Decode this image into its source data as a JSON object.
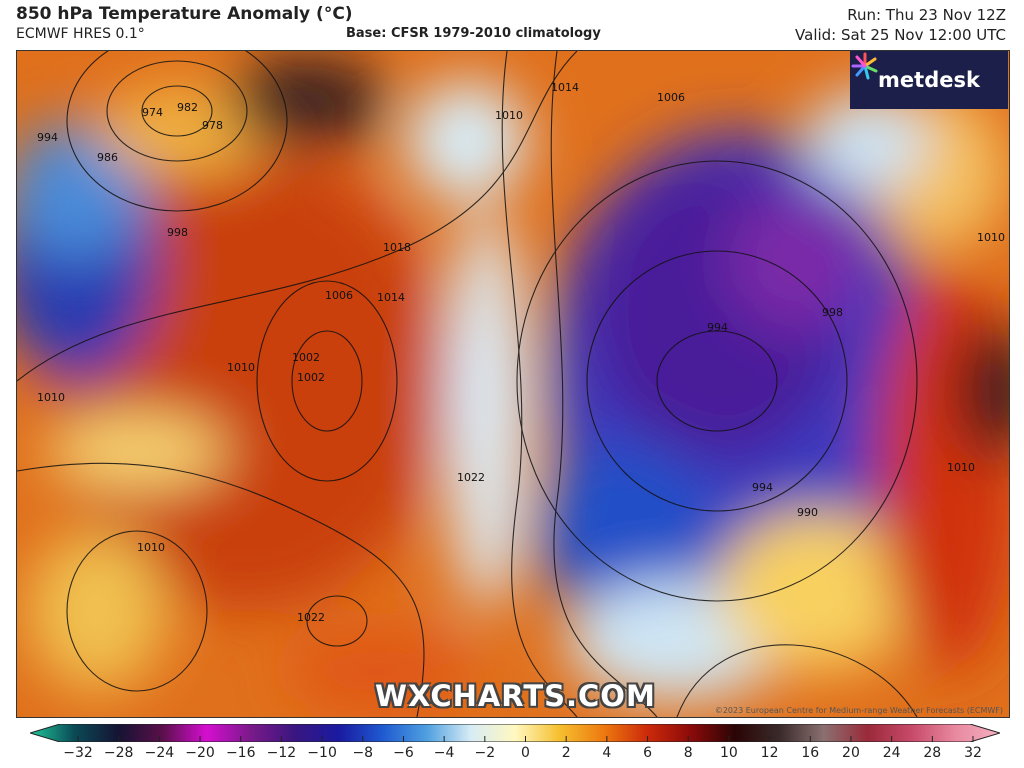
{
  "header": {
    "title": "850 hPa Temperature Anomaly (°C)",
    "model": "ECMWF HRES 0.1°",
    "base": "Base: CFSR 1979-2010 climatology",
    "run": "Run: Thu 23 Nov 12Z",
    "valid": "Valid: Sat 25 Nov 12:00 UTC"
  },
  "logo": {
    "text": "metdesk",
    "icon": "metdesk-flower-icon"
  },
  "watermark": "WXCHARTS.COM",
  "copyright": "©2023 European Centre for Medium-range Weather Forecasts (ECMWF)",
  "isobar_labels": [
    "982",
    "974",
    "978",
    "986",
    "994",
    "1002",
    "998",
    "1006",
    "1010",
    "1014",
    "1018",
    "1010",
    "1014",
    "1006",
    "1002",
    "1010",
    "1010",
    "1022",
    "1022",
    "994",
    "994",
    "998",
    "990",
    "1010",
    "1010"
  ],
  "colorbar": {
    "labels": [
      "−32",
      "−28",
      "−24",
      "−20",
      "−16",
      "−12",
      "−10",
      "−8",
      "−6",
      "−4",
      "−2",
      "0",
      "2",
      "4",
      "6",
      "8",
      "10",
      "12",
      "16",
      "20",
      "24",
      "28",
      "32"
    ],
    "colors": [
      "#1fc79a",
      "#0b4a56",
      "#141433",
      "#5a0f4a",
      "#d40fd0",
      "#7a1a8a",
      "#3a1680",
      "#1a1aa0",
      "#1f5ad0",
      "#4fa0e0",
      "#d8ecf5",
      "#fff8c0",
      "#f5c030",
      "#ee7a10",
      "#cc2a0a",
      "#8a0a0a",
      "#2a0505",
      "#3a2a2a",
      "#8a7070",
      "#9a2a3a",
      "#c84a6a",
      "#e88aa0",
      "#f5b0c0"
    ]
  }
}
